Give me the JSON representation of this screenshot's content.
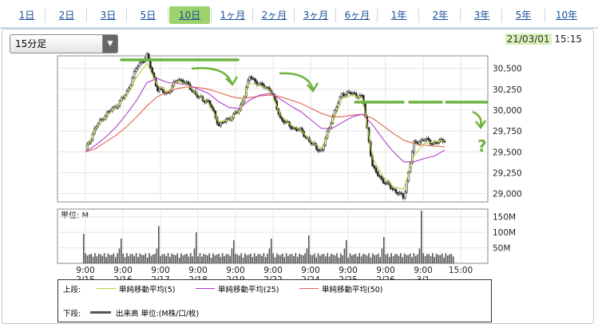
{
  "tabs": [
    {
      "label": "1日",
      "active": false
    },
    {
      "label": "2日",
      "active": false
    },
    {
      "label": "3日",
      "active": false
    },
    {
      "label": "5日",
      "active": false
    },
    {
      "label": "10日",
      "active": true
    },
    {
      "label": "1ヶ月",
      "active": false
    },
    {
      "label": "2ヶ月",
      "active": false
    },
    {
      "label": "3ヶ月",
      "active": false
    },
    {
      "label": "6ヶ月",
      "active": false
    },
    {
      "label": "1年",
      "active": false
    },
    {
      "label": "2年",
      "active": false
    },
    {
      "label": "3年",
      "active": false
    },
    {
      "label": "5年",
      "active": false
    },
    {
      "label": "10年",
      "active": false
    }
  ],
  "interval_select": {
    "value": "15分足"
  },
  "timestamp": {
    "date": "21/03/01",
    "time": "15:15"
  },
  "legend": {
    "upper_label": "上段:",
    "lower_label": "下段:",
    "ma5": "単純移動平均(5)",
    "ma25": "単純移動平均(25)",
    "ma50": "単純移動平均(50)",
    "volume": "出来高 単位:(M株/口/枚)"
  },
  "colors": {
    "ma5": "#b5d334",
    "ma25": "#b03cd0",
    "ma50": "#e0654a",
    "candle": "#222222",
    "annotation": "#6db33f",
    "volume": "#555555"
  },
  "chart_data": {
    "type": "candlestick",
    "sessions": [
      {
        "date": "2/15",
        "start": "9:00"
      },
      {
        "date": "2/16",
        "start": "9:00"
      },
      {
        "date": "2/17",
        "start": "9:00"
      },
      {
        "date": "2/18",
        "start": "9:00"
      },
      {
        "date": "2/19",
        "start": "9:00"
      },
      {
        "date": "2/22",
        "start": "9:00"
      },
      {
        "date": "2/24",
        "start": "9:00"
      },
      {
        "date": "2/25",
        "start": "9:00"
      },
      {
        "date": "2/26",
        "start": "9:00"
      },
      {
        "date": "3/1",
        "start": "9:00"
      }
    ],
    "x_end_label": "15:00",
    "price_ticks": [
      29000,
      29250,
      29500,
      29750,
      30000,
      30250,
      30500
    ],
    "ylim": [
      28900,
      30650
    ],
    "close_path": [
      29520,
      29800,
      29950,
      30050,
      30200,
      30520,
      30650,
      30250,
      30200,
      30380,
      30300,
      30150,
      30100,
      29820,
      29900,
      30000,
      30400,
      30300,
      30250,
      29900,
      29800,
      29750,
      29600,
      29500,
      29900,
      30200,
      30200,
      30150,
      29300,
      29150,
      29050,
      28950,
      29600,
      29650,
      29600,
      29650
    ],
    "ma_values": {
      "ma5": [
        29520,
        29780,
        29920,
        30040,
        30160,
        30400,
        30560,
        30300,
        30220,
        30350,
        30300,
        30180,
        30080,
        29860,
        29880,
        29980,
        30320,
        30300,
        30240,
        29940,
        29820,
        29760,
        29620,
        29540,
        29820,
        30140,
        30180,
        30140,
        29420,
        29200,
        29080,
        29050,
        29450,
        29600,
        29620,
        29640
      ],
      "ma25": [
        29500,
        29580,
        29680,
        29800,
        29950,
        30120,
        30330,
        30380,
        30330,
        30320,
        30300,
        30250,
        30200,
        30100,
        30030,
        30020,
        30120,
        30180,
        30200,
        30130,
        30050,
        29980,
        29880,
        29780,
        29780,
        29850,
        29920,
        29950,
        29820,
        29650,
        29500,
        29380,
        29380,
        29420,
        29450,
        29520
      ],
      "ma50": [
        29500,
        29540,
        29620,
        29700,
        29800,
        29920,
        30050,
        30160,
        30220,
        30260,
        30280,
        30270,
        30250,
        30210,
        30170,
        30140,
        30150,
        30170,
        30180,
        30160,
        30120,
        30080,
        30020,
        29960,
        29920,
        29920,
        29940,
        29950,
        29900,
        29810,
        29720,
        29640,
        29600,
        29580,
        29570,
        29560
      ]
    },
    "volume": {
      "label": "単位: M",
      "ticks": [
        "50M",
        "100M",
        "150M"
      ],
      "ylim": [
        0,
        175
      ],
      "session_open_values": [
        95,
        80,
        120,
        100,
        75,
        80,
        90,
        75,
        85,
        170
      ],
      "typical_value": 30,
      "close_value": 80
    },
    "annotations": [
      {
        "kind": "resistance-line",
        "label": "top-left"
      },
      {
        "kind": "down-arrow",
        "count": 3
      },
      {
        "kind": "question-mark",
        "text": "?"
      }
    ]
  }
}
